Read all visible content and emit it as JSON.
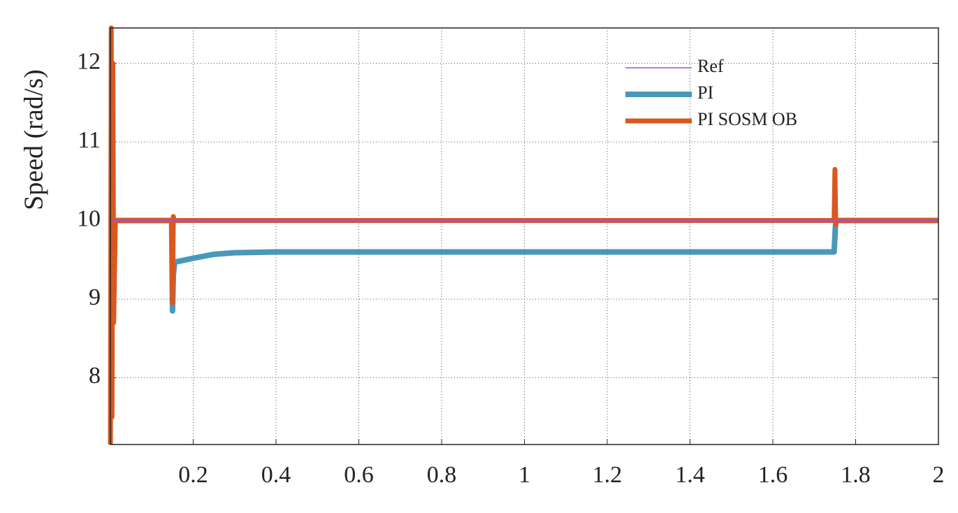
{
  "chart_data": {
    "type": "line",
    "ylabel": "Speed (rad/s)",
    "xlim": [
      0,
      2
    ],
    "ylim": [
      7.15,
      12.45
    ],
    "xticks": [
      0.2,
      0.4,
      0.6,
      0.8,
      1,
      1.2,
      1.4,
      1.6,
      1.8,
      2
    ],
    "yticks": [
      8,
      9,
      10,
      11,
      12
    ],
    "grid": true,
    "legend": "upper right",
    "series": [
      {
        "name": "Ref",
        "color": "#a44ee0",
        "width": 1.5,
        "x": [
          0,
          2
        ],
        "values": [
          10,
          10
        ]
      },
      {
        "name": "PI",
        "color": "#4a98b8",
        "width": 8,
        "x": [
          0,
          0.005,
          0.01,
          0.148,
          0.15,
          0.152,
          0.155,
          0.2,
          0.25,
          0.3,
          0.4,
          1.748,
          1.75,
          1.752,
          2
        ],
        "values": [
          10,
          10,
          10,
          10,
          8.85,
          9.3,
          9.47,
          9.52,
          9.57,
          9.59,
          9.6,
          9.6,
          9.8,
          10,
          10
        ]
      },
      {
        "name": "PI SOSM OB",
        "color": "#d9581f",
        "width": 7,
        "x": [
          0,
          0.002,
          0.004,
          0.006,
          0.008,
          0.012,
          0.148,
          0.15,
          0.152,
          0.154,
          1.748,
          1.75,
          1.752,
          1.754,
          2
        ],
        "values": [
          7.15,
          12.45,
          7.5,
          12.0,
          8.7,
          10,
          10,
          8.95,
          10.05,
          10,
          10,
          10.65,
          9.95,
          10,
          10
        ]
      }
    ]
  }
}
